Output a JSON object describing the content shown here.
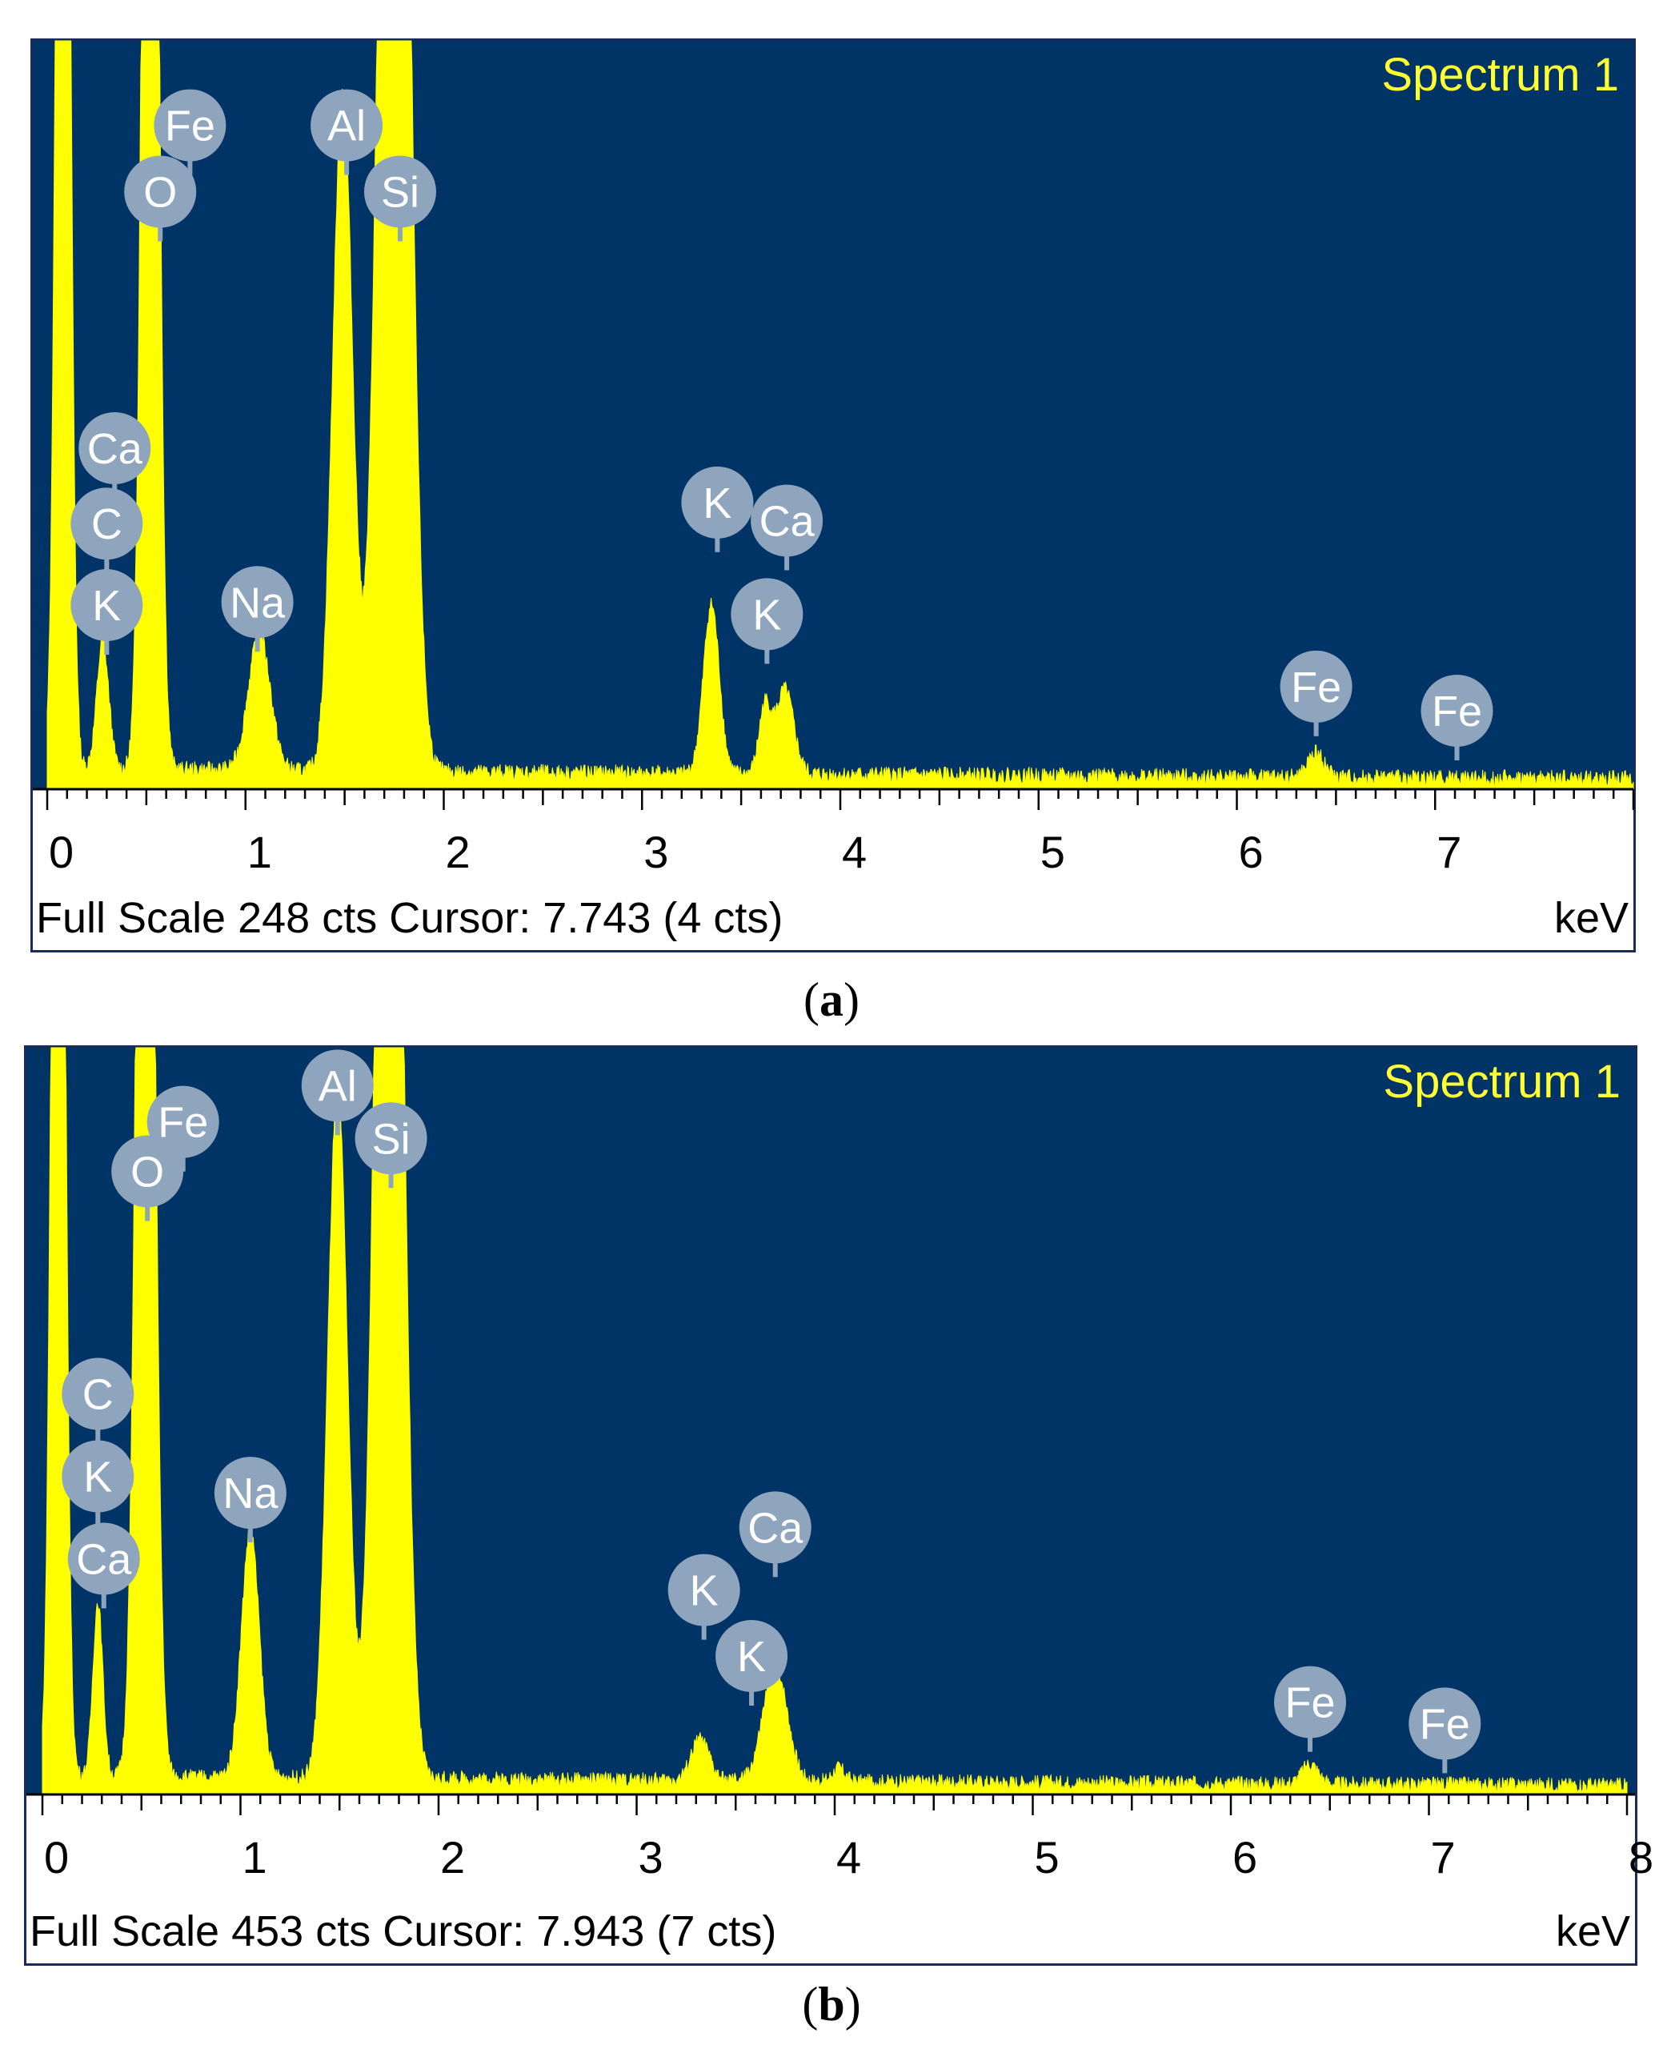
{
  "chart_data": [
    {
      "type": "line",
      "title": "Spectrum 1",
      "xunit": "keV",
      "xlim": [
        0,
        8.0
      ],
      "xticks": [
        "0",
        "1",
        "2",
        "3",
        "4",
        "5",
        "6",
        "7"
      ],
      "footer": "Full Scale 248 cts Cursor: 7.743  (4 cts)",
      "caption_label": "a",
      "full_scale": 248,
      "colors": {
        "background": "#003366",
        "trace": "#ffff00",
        "label_marker": "#8fa5bd",
        "title_text": "#ffff33"
      },
      "peaks": [
        {
          "x": 0.08,
          "y": 600,
          "w": 0.03
        },
        {
          "x": 0.28,
          "y": 42,
          "w": 0.03
        },
        {
          "x": 0.52,
          "y": 600,
          "w": 0.035
        },
        {
          "x": 1.07,
          "y": 45,
          "w": 0.055
        },
        {
          "x": 1.49,
          "y": 225,
          "w": 0.05
        },
        {
          "x": 1.75,
          "y": 600,
          "w": 0.065
        },
        {
          "x": 3.35,
          "y": 56,
          "w": 0.04
        },
        {
          "x": 3.62,
          "y": 22,
          "w": 0.03
        },
        {
          "x": 3.72,
          "y": 28,
          "w": 0.045
        },
        {
          "x": 6.4,
          "y": 8,
          "w": 0.04
        }
      ],
      "background_counts": 6,
      "annotations": [
        {
          "element": "Fe",
          "x": 0.72,
          "y": 220
        },
        {
          "element": "O",
          "x": 0.57,
          "y": 198
        },
        {
          "element": "Al",
          "x": 1.51,
          "y": 220
        },
        {
          "element": "Si",
          "x": 1.78,
          "y": 198
        },
        {
          "element": "Ca",
          "x": 0.34,
          "y": 113
        },
        {
          "element": "C",
          "x": 0.3,
          "y": 88
        },
        {
          "element": "K",
          "x": 0.3,
          "y": 61
        },
        {
          "element": "Na",
          "x": 1.06,
          "y": 62
        },
        {
          "element": "K",
          "x": 3.38,
          "y": 95
        },
        {
          "element": "Ca",
          "x": 3.73,
          "y": 89
        },
        {
          "element": "K",
          "x": 3.63,
          "y": 58
        },
        {
          "element": "Fe",
          "x": 6.4,
          "y": 34
        },
        {
          "element": "Fe",
          "x": 7.11,
          "y": 26
        }
      ]
    },
    {
      "type": "line",
      "title": "Spectrum 1",
      "xunit": "keV",
      "xlim": [
        0,
        8.0
      ],
      "xticks": [
        "0",
        "1",
        "2",
        "3",
        "4",
        "5",
        "6",
        "7",
        "8"
      ],
      "footer": "Full Scale 453 cts Cursor: 7.943  (7 cts)",
      "caption_label": "b",
      "full_scale": 453,
      "colors": {
        "background": "#003366",
        "trace": "#ffff00",
        "label_marker": "#8fa5bd",
        "title_text": "#ffff33"
      },
      "peaks": [
        {
          "x": 0.08,
          "y": 1000,
          "w": 0.03
        },
        {
          "x": 0.28,
          "y": 105,
          "w": 0.025
        },
        {
          "x": 0.52,
          "y": 1000,
          "w": 0.04
        },
        {
          "x": 1.05,
          "y": 150,
          "w": 0.045
        },
        {
          "x": 1.49,
          "y": 420,
          "w": 0.05
        },
        {
          "x": 1.75,
          "y": 1000,
          "w": 0.06
        },
        {
          "x": 3.32,
          "y": 25,
          "w": 0.045
        },
        {
          "x": 3.7,
          "y": 70,
          "w": 0.06
        },
        {
          "x": 4.02,
          "y": 8,
          "w": 0.03
        },
        {
          "x": 6.4,
          "y": 12,
          "w": 0.04
        }
      ],
      "background_counts": 10,
      "annotations": [
        {
          "element": "Fe",
          "x": 0.71,
          "y": 408
        },
        {
          "element": "O",
          "x": 0.53,
          "y": 378
        },
        {
          "element": "Al",
          "x": 1.49,
          "y": 430
        },
        {
          "element": "Si",
          "x": 1.76,
          "y": 398
        },
        {
          "element": "C",
          "x": 0.28,
          "y": 243
        },
        {
          "element": "K",
          "x": 0.28,
          "y": 193
        },
        {
          "element": "Ca",
          "x": 0.31,
          "y": 143
        },
        {
          "element": "Na",
          "x": 1.05,
          "y": 183
        },
        {
          "element": "Ca",
          "x": 3.7,
          "y": 162
        },
        {
          "element": "K",
          "x": 3.34,
          "y": 124
        },
        {
          "element": "K",
          "x": 3.58,
          "y": 84
        },
        {
          "element": "Fe",
          "x": 6.4,
          "y": 56
        },
        {
          "element": "Fe",
          "x": 7.08,
          "y": 43
        }
      ]
    }
  ]
}
